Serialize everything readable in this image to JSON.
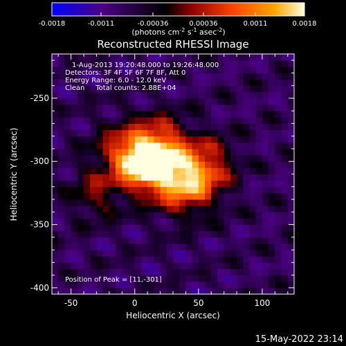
{
  "colorbar": {
    "tick_labels": [
      "-0.0018",
      "-0.0011",
      "-0.00036",
      "0.00036",
      "0.0011",
      "0.0018"
    ],
    "unit_main": "(photons cm",
    "unit_sup1": "-2",
    "unit_mid": " s",
    "unit_sup2": "-1",
    "unit_mid2": " asec",
    "unit_sup3": "-2",
    "unit_end": ")",
    "range": [
      -0.0018,
      0.0018
    ],
    "colors": [
      "#0000ff",
      "#4b0082",
      "#000000",
      "#8b0000",
      "#ff4500",
      "#ffa500",
      "#ffffe0"
    ]
  },
  "chart_data": {
    "type": "heatmap",
    "title": "Reconstructed RHESSI Image",
    "xlabel": "Heliocentric X (arcsec)",
    "ylabel": "Heliocentric Y (arcsec)",
    "xlim": [
      -65,
      125
    ],
    "ylim": [
      -405,
      -215
    ],
    "x_ticks": [
      -50,
      0,
      50,
      100
    ],
    "y_ticks": [
      -250,
      -300,
      -350,
      -400
    ],
    "x_tick_labels": [
      "-50",
      "0",
      "50",
      "100"
    ],
    "y_tick_labels": [
      "-250",
      "-300",
      "-350",
      "-400"
    ],
    "peak": [
      11,
      -301
    ],
    "sources": [
      {
        "x": 8,
        "y": -302,
        "sigma": 12,
        "amp": 1.0
      },
      {
        "x": 28,
        "y": -308,
        "sigma": 18,
        "amp": 0.7
      },
      {
        "x": 45,
        "y": -318,
        "sigma": 16,
        "amp": 0.55
      },
      {
        "x": -8,
        "y": -292,
        "sigma": 16,
        "amp": 0.55
      },
      {
        "x": 20,
        "y": -282,
        "sigma": 14,
        "amp": 0.45
      },
      {
        "x": -30,
        "y": -325,
        "sigma": 14,
        "amp": 0.35
      },
      {
        "x": 60,
        "y": -300,
        "sigma": 14,
        "amp": 0.35
      }
    ],
    "annotations": [
      "1-Aug-2013 19:20:48.000 to 19:26:48.000",
      "Detectors: 3F 4F 5F 6F 7F 8F, Att 0",
      "Energy Range: 6.0 - 12.0 keV",
      "Clean     Total counts: 2.88E+04"
    ],
    "peak_label": "Position of Peak = [11,-301]"
  },
  "footer": {
    "timestamp": "15-May-2022 23:14"
  }
}
